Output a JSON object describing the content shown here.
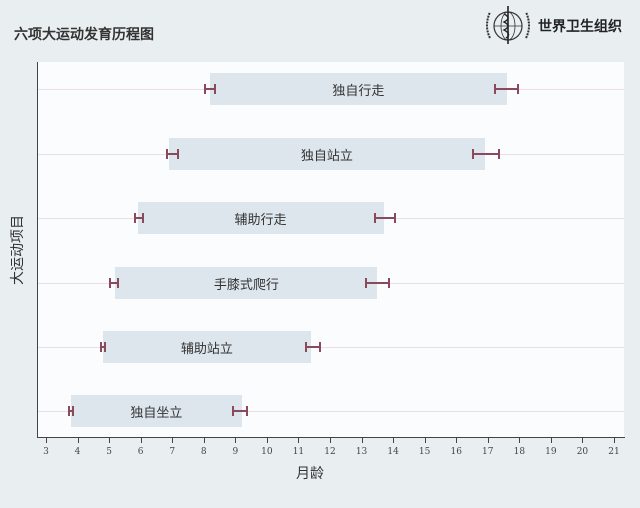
{
  "header": {
    "title": "六项大运动发育历程图",
    "logo_text": "世界卫生组织",
    "logo_icon": "who-emblem-icon"
  },
  "chart_data": {
    "type": "bar",
    "orientation": "horizontal-range",
    "title": "六项大运动发育历程图",
    "xlabel": "月龄",
    "ylabel": "大运动项目",
    "xlim": [
      2.75,
      21.3
    ],
    "xticks": [
      3,
      4,
      5,
      6,
      7,
      8,
      9,
      10,
      11,
      12,
      13,
      14,
      15,
      16,
      17,
      18,
      19,
      20,
      21
    ],
    "grid": "horizontal",
    "categories": [
      "独自行走",
      "独自站立",
      "辅助行走",
      "手膝式爬行",
      "辅助站立",
      "独自坐立"
    ],
    "series": [
      {
        "name": "独自行走",
        "start": 8.2,
        "end": 17.6,
        "start_ci": [
          8.0,
          8.4
        ],
        "end_ci": [
          17.2,
          18.0
        ]
      },
      {
        "name": "独自站立",
        "start": 6.9,
        "end": 16.9,
        "start_ci": [
          6.8,
          7.2
        ],
        "end_ci": [
          16.5,
          17.4
        ]
      },
      {
        "name": "辅助行走",
        "start": 5.9,
        "end": 13.7,
        "start_ci": [
          5.8,
          6.1
        ],
        "end_ci": [
          13.4,
          14.1
        ]
      },
      {
        "name": "手膝式爬行",
        "start": 5.2,
        "end": 13.5,
        "start_ci": [
          5.0,
          5.3
        ],
        "end_ci": [
          13.1,
          13.9
        ]
      },
      {
        "name": "辅助站立",
        "start": 4.8,
        "end": 11.4,
        "start_ci": [
          4.7,
          4.9
        ],
        "end_ci": [
          11.2,
          11.7
        ]
      },
      {
        "name": "独自坐立",
        "start": 3.8,
        "end": 9.2,
        "start_ci": [
          3.7,
          3.9
        ],
        "end_ci": [
          8.9,
          9.4
        ]
      }
    ],
    "colors": {
      "bar": "#dde6ec",
      "whisker": "#8a4a5c",
      "background": "#e9eff1",
      "plot": "#fbfcfd"
    }
  }
}
